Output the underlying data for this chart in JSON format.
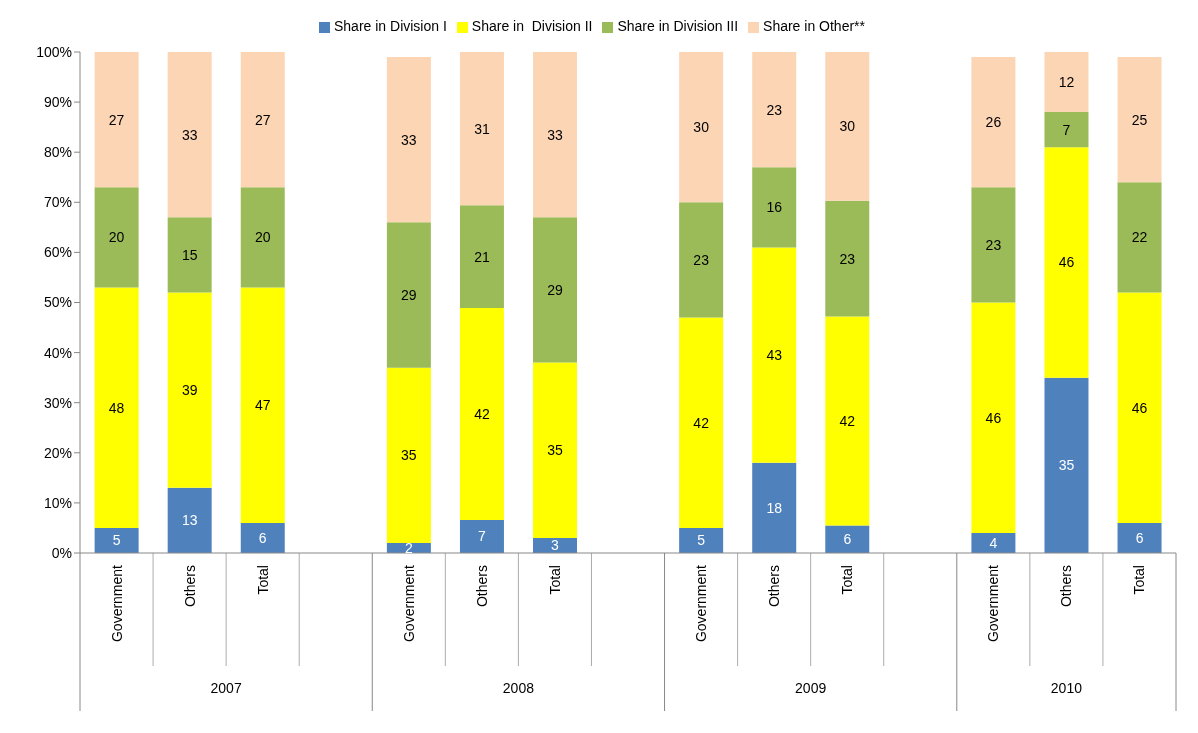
{
  "chart_data": {
    "type": "bar",
    "stacked": true,
    "legend": "top",
    "categories": [
      "Government",
      "Others",
      "Total",
      null,
      "Government",
      "Others",
      "Total",
      null,
      "Government",
      "Others",
      "Total",
      null,
      "Government",
      "Others",
      "Total"
    ],
    "annotations": [
      "2007",
      "2008",
      "2009",
      "2010"
    ],
    "series": [
      {
        "name": "Share in Division I",
        "color": "#4f81bd",
        "values": [
          5,
          13,
          6,
          null,
          2,
          6.6,
          3,
          null,
          5,
          18,
          5.5,
          null,
          4,
          35,
          6
        ],
        "value_labels": [
          "5",
          "13",
          "6",
          null,
          "2",
          "7",
          "3",
          null,
          "5",
          "18",
          "6",
          null,
          "4",
          "35",
          "6"
        ]
      },
      {
        "name": "Share in  Division II",
        "color": "#ffff00",
        "values": [
          48,
          39,
          47,
          null,
          35,
          42.3,
          35,
          null,
          42,
          43,
          41.7,
          null,
          46,
          46,
          46
        ],
        "value_labels": [
          "48",
          "39",
          "47",
          null,
          "35",
          "42",
          "35",
          null,
          "42",
          "43",
          "42",
          null,
          "46",
          "46",
          "46"
        ]
      },
      {
        "name": "Share in Division III",
        "color": "#9bbb59",
        "values": [
          20,
          15,
          20,
          null,
          29,
          20.5,
          29,
          null,
          23,
          16,
          23.1,
          null,
          23,
          7,
          22
        ],
        "value_labels": [
          "20",
          "15",
          "20",
          null,
          "29",
          "21",
          "29",
          null,
          "23",
          "16",
          "23",
          null,
          "23",
          "7",
          "22"
        ]
      },
      {
        "name": "Share in Other**",
        "color": "#fcd5b5",
        "values": [
          27,
          33,
          27,
          null,
          33,
          30.6,
          33,
          null,
          30,
          23,
          29.7,
          null,
          26,
          12,
          25
        ],
        "value_labels": [
          "27",
          "33",
          "27",
          null,
          "33",
          "31",
          "33",
          null,
          "30",
          "23",
          "30",
          null,
          "26",
          "12",
          "25"
        ]
      }
    ],
    "ylim": [
      0,
      100
    ],
    "yticks": [
      {
        "value": 0,
        "label": "0%"
      },
      {
        "value": 10,
        "label": "10%"
      },
      {
        "value": 20,
        "label": "20%"
      },
      {
        "value": 30,
        "label": "30%"
      },
      {
        "value": 40,
        "label": "40%"
      },
      {
        "value": 50,
        "label": "50%"
      },
      {
        "value": 60,
        "label": "60%"
      },
      {
        "value": 70,
        "label": "70%"
      },
      {
        "value": 80,
        "label": "80%"
      },
      {
        "value": 90,
        "label": "90%"
      },
      {
        "value": 100,
        "label": "100%"
      }
    ]
  }
}
